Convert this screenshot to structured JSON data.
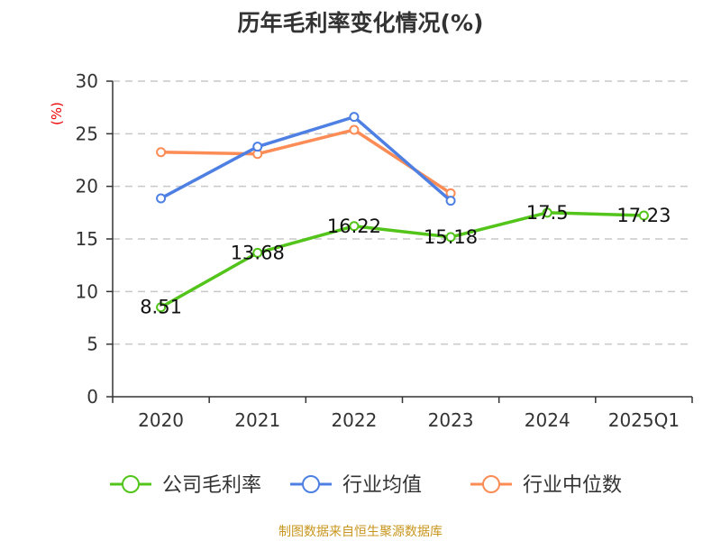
{
  "chart_data": {
    "type": "line",
    "title": "历年毛利率变化情况(%)",
    "ylabel": "(%)",
    "categories": [
      "2020",
      "2021",
      "2022",
      "2023",
      "2024",
      "2025Q1"
    ],
    "ylim": [
      0,
      30
    ],
    "yticks": [
      0,
      5,
      10,
      15,
      20,
      25,
      30
    ],
    "grid": true,
    "legend_position": "bottom",
    "series": [
      {
        "name": "公司毛利率",
        "color": "#52c41a",
        "values": [
          8.51,
          13.68,
          16.22,
          15.18,
          17.5,
          17.23
        ],
        "labels": [
          "8.51",
          "13.68",
          "16.22",
          "15.18",
          "17.5",
          "17.23"
        ]
      },
      {
        "name": "行业均值",
        "color": "#4e7fe3",
        "values": [
          18.86,
          23.77,
          26.6,
          18.63,
          null,
          null
        ]
      },
      {
        "name": "行业中位数",
        "color": "#fb8c55",
        "values": [
          23.25,
          23.08,
          25.37,
          19.34,
          null,
          null
        ]
      }
    ]
  },
  "source": "制图数据来自恒生聚源数据库"
}
